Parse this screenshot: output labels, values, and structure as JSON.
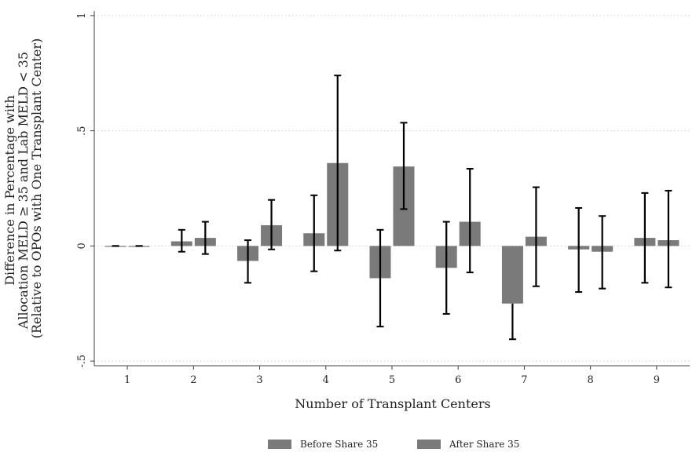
{
  "chart_data": {
    "type": "bar",
    "xlabel": "Number of Transplant Centers",
    "ylabel_lines": [
      "Difference in Percentage with",
      "Allocation MELD ≥ 35 and Lab MELD < 35",
      "(Relative to OPOs with One Transplant Center)"
    ],
    "categories": [
      "1",
      "2",
      "3",
      "4",
      "5",
      "6",
      "7",
      "8",
      "9"
    ],
    "ylim": [
      -0.52,
      1.02
    ],
    "yticks": [
      {
        "value": 1,
        "label": "1"
      },
      {
        "value": 0.5,
        "label": ".5"
      },
      {
        "value": 0,
        "label": "0"
      },
      {
        "value": -0.5,
        "label": "-.5"
      }
    ],
    "grid": true,
    "legend_position": "bottom",
    "series": [
      {
        "name": "Before Share 35",
        "color": "#7a7a7a",
        "values": [
          0,
          0.02,
          -0.065,
          0.055,
          -0.14,
          -0.095,
          -0.25,
          -0.015,
          0.035
        ],
        "ci_low": [
          0,
          -0.025,
          -0.16,
          -0.11,
          -0.35,
          -0.295,
          -0.405,
          -0.2,
          -0.16
        ],
        "ci_high": [
          0,
          0.07,
          0.025,
          0.22,
          0.07,
          0.105,
          null,
          0.165,
          0.23
        ]
      },
      {
        "name": "After Share 35",
        "color": "#7a7a7a",
        "values": [
          0,
          0.035,
          0.09,
          0.36,
          0.345,
          0.105,
          0.04,
          -0.025,
          0.025
        ],
        "ci_low": [
          0,
          -0.035,
          -0.015,
          -0.02,
          0.16,
          -0.115,
          -0.175,
          -0.185,
          -0.18
        ],
        "ci_high": [
          0,
          0.105,
          0.2,
          0.74,
          0.535,
          0.335,
          0.255,
          0.13,
          0.24
        ]
      }
    ]
  }
}
